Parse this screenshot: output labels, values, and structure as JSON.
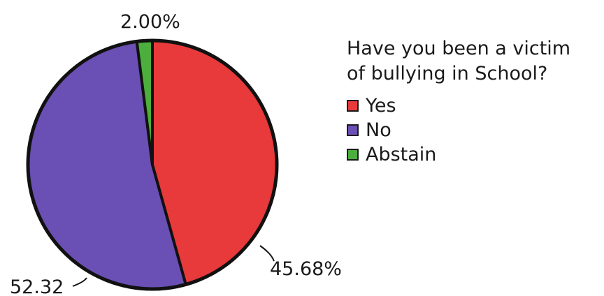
{
  "chart_data": {
    "type": "pie",
    "title": "Have you been a victim of bullying in school?",
    "title_lines": [
      "Have you been a victim",
      "of bullying in School?"
    ],
    "legend_position": "right",
    "slices": [
      {
        "label": "Yes",
        "value": 45.68,
        "value_text": "45.68%",
        "color": "#e8393b"
      },
      {
        "label": "No",
        "value": 52.32,
        "value_text": "52.32",
        "color": "#6a4fb4"
      },
      {
        "label": "Abstain",
        "value": 2.0,
        "value_text": "2.00%",
        "color": "#4cae3c"
      }
    ]
  }
}
